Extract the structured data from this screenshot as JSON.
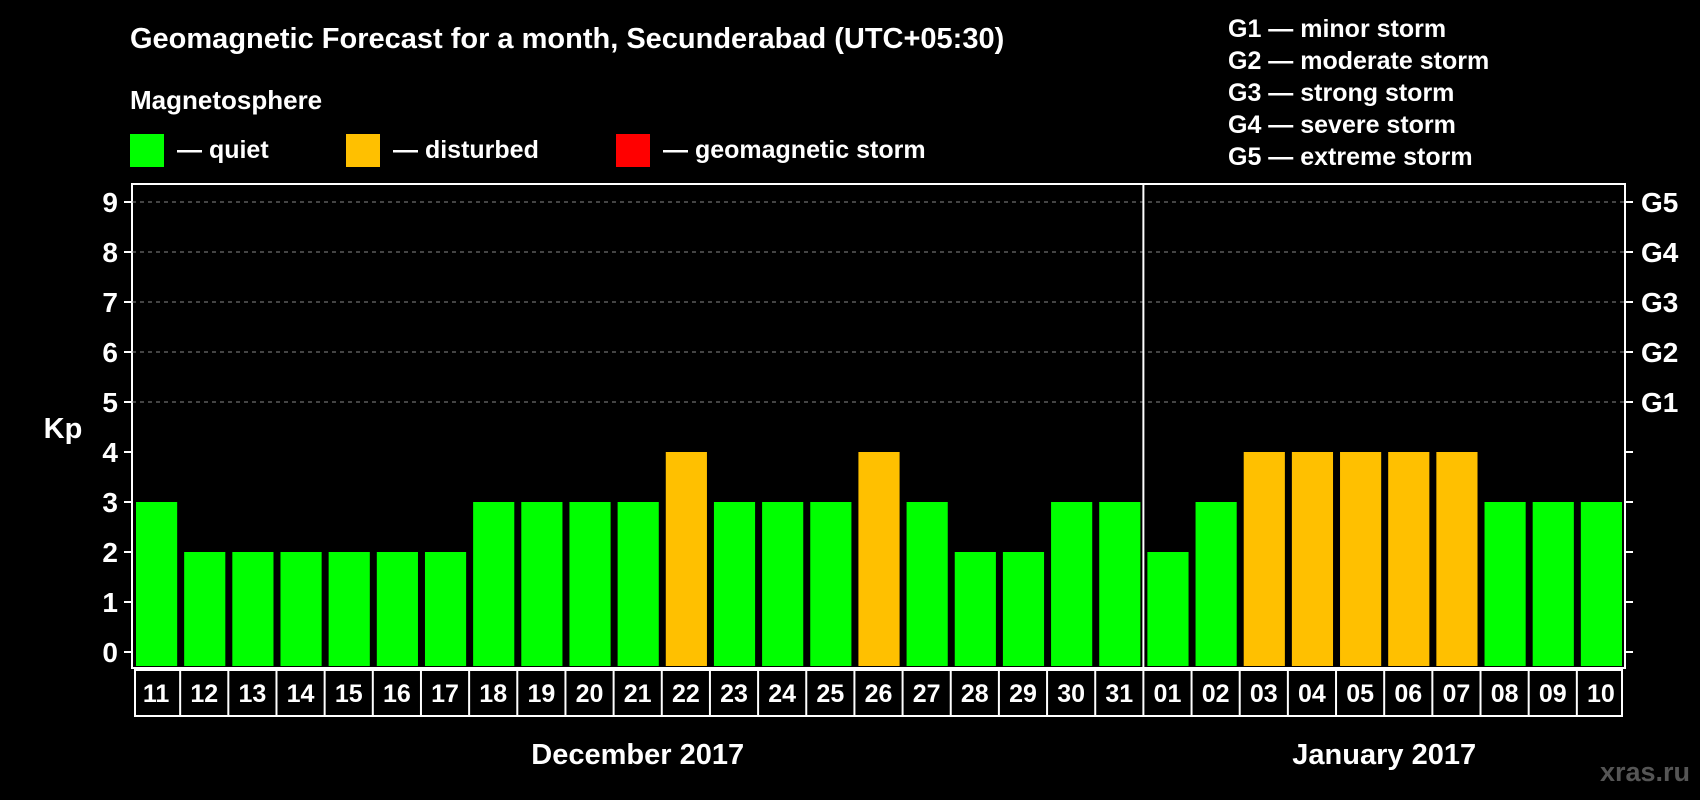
{
  "chart_data": {
    "type": "bar",
    "title": "Geomagnetic Forecast for a month, Secunderabad (UTC+05:30)",
    "legend_title": "Magnetosphere",
    "legend": [
      {
        "label": "— quiet",
        "color": "#00ff00"
      },
      {
        "label": "— disturbed",
        "color": "#ffc000"
      },
      {
        "label": "— geomagnetic storm",
        "color": "#ff0000"
      }
    ],
    "storm_scale": [
      "G1 — minor storm",
      "G2 — moderate storm",
      "G3 — strong storm",
      "G4 — severe storm",
      "G5 — extreme storm"
    ],
    "ylabel": "Kp",
    "ylim": [
      0,
      9
    ],
    "yticks": [
      "0",
      "1",
      "2",
      "3",
      "4",
      "5",
      "6",
      "7",
      "8",
      "9"
    ],
    "right_ticks": [
      {
        "kp": 5,
        "label": "G1"
      },
      {
        "kp": 6,
        "label": "G2"
      },
      {
        "kp": 7,
        "label": "G3"
      },
      {
        "kp": 8,
        "label": "G4"
      },
      {
        "kp": 9,
        "label": "G5"
      }
    ],
    "categories": [
      "11",
      "12",
      "13",
      "14",
      "15",
      "16",
      "17",
      "18",
      "19",
      "20",
      "21",
      "22",
      "23",
      "24",
      "25",
      "26",
      "27",
      "28",
      "29",
      "30",
      "31",
      "01",
      "02",
      "03",
      "04",
      "05",
      "06",
      "07",
      "08",
      "09",
      "10"
    ],
    "values": [
      3,
      2,
      2,
      2,
      2,
      2,
      2,
      3,
      3,
      3,
      3,
      4,
      3,
      3,
      3,
      4,
      3,
      2,
      2,
      3,
      3,
      2,
      3,
      4,
      4,
      4,
      4,
      4,
      3,
      3,
      3
    ],
    "status": [
      "quiet",
      "quiet",
      "quiet",
      "quiet",
      "quiet",
      "quiet",
      "quiet",
      "quiet",
      "quiet",
      "quiet",
      "quiet",
      "disturbed",
      "quiet",
      "quiet",
      "quiet",
      "disturbed",
      "quiet",
      "quiet",
      "quiet",
      "quiet",
      "quiet",
      "quiet",
      "quiet",
      "disturbed",
      "disturbed",
      "disturbed",
      "disturbed",
      "disturbed",
      "quiet",
      "quiet",
      "quiet"
    ],
    "colors": {
      "quiet": "#00ff00",
      "disturbed": "#ffc000",
      "storm": "#ff0000"
    },
    "month_groups": [
      {
        "label": "December 2017",
        "count": 21
      },
      {
        "label": "January 2017",
        "count": 10
      }
    ]
  },
  "brand": "xras.ru"
}
